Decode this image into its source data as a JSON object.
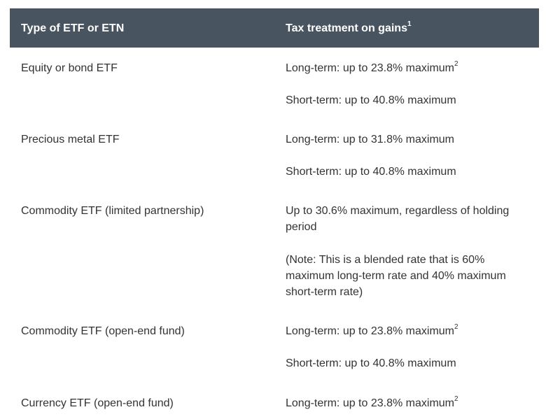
{
  "table": {
    "header": {
      "col1": "Type of ETF or ETN",
      "col2": "Tax treatment on gains",
      "col2_footnote": "1"
    },
    "rows": [
      {
        "type": "Equity or bond ETF",
        "lines": [
          {
            "text": "Long-term: up to 23.8% maximum",
            "footnote": "2"
          },
          {
            "text": "Short-term: up to 40.8% maximum",
            "footnote": ""
          }
        ]
      },
      {
        "type": "Precious metal ETF",
        "lines": [
          {
            "text": "Long-term: up to 31.8% maximum",
            "footnote": ""
          },
          {
            "text": "Short-term: up to 40.8% maximum",
            "footnote": ""
          }
        ]
      },
      {
        "type": "Commodity ETF (limited partnership)",
        "lines": [
          {
            "text": "Up to 30.6% maximum, regardless of holding period",
            "footnote": ""
          },
          {
            "text": "(Note: This is a blended rate that is 60% maximum long-term rate and 40% maximum short-term rate)",
            "footnote": ""
          }
        ]
      },
      {
        "type": "Commodity ETF (open-end fund)",
        "lines": [
          {
            "text": "Long-term: up to 23.8% maximum",
            "footnote": "2"
          },
          {
            "text": "Short-term: up to 40.8% maximum",
            "footnote": ""
          }
        ]
      },
      {
        "type": "Currency ETF (open-end fund)",
        "lines": [
          {
            "text": "Long-term: up to 23.8% maximum",
            "footnote": "2"
          }
        ]
      }
    ]
  }
}
